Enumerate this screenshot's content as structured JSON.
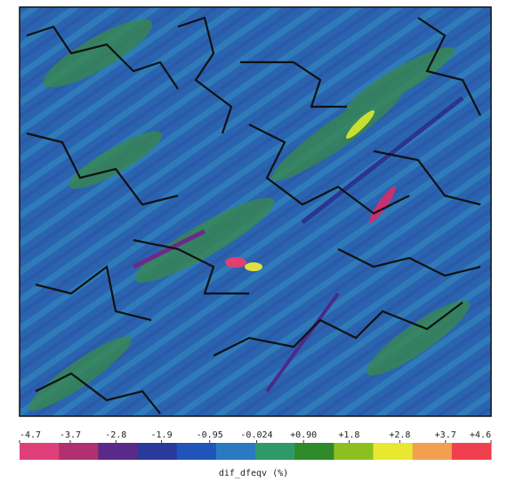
{
  "chart_data": {
    "type": "heatmap",
    "colorbar_label": "dif_dfeqv (%)",
    "clim": [
      -4.7,
      4.6
    ],
    "colorbar_ticks": [
      {
        "value": -4.7,
        "label": "-4.7"
      },
      {
        "value": -3.7,
        "label": "-3.7"
      },
      {
        "value": -2.8,
        "label": "-2.8"
      },
      {
        "value": -1.9,
        "label": "-1.9"
      },
      {
        "value": -0.95,
        "label": "-0.95"
      },
      {
        "value": -0.024,
        "label": "-0.024"
      },
      {
        "value": 0.9,
        "label": "+0.90"
      },
      {
        "value": 1.8,
        "label": "+1.8"
      },
      {
        "value": 2.8,
        "label": "+2.8"
      },
      {
        "value": 3.7,
        "label": "+3.7"
      },
      {
        "value": 4.6,
        "label": "+4.6"
      }
    ],
    "colors": [
      "#e0407a",
      "#b03070",
      "#5a2a8a",
      "#2a3a9a",
      "#1f55b8",
      "#2a7ac0",
      "#2e9a6a",
      "#2f8a2a",
      "#8cc020",
      "#e8e830",
      "#f0a050",
      "#f04050"
    ]
  }
}
